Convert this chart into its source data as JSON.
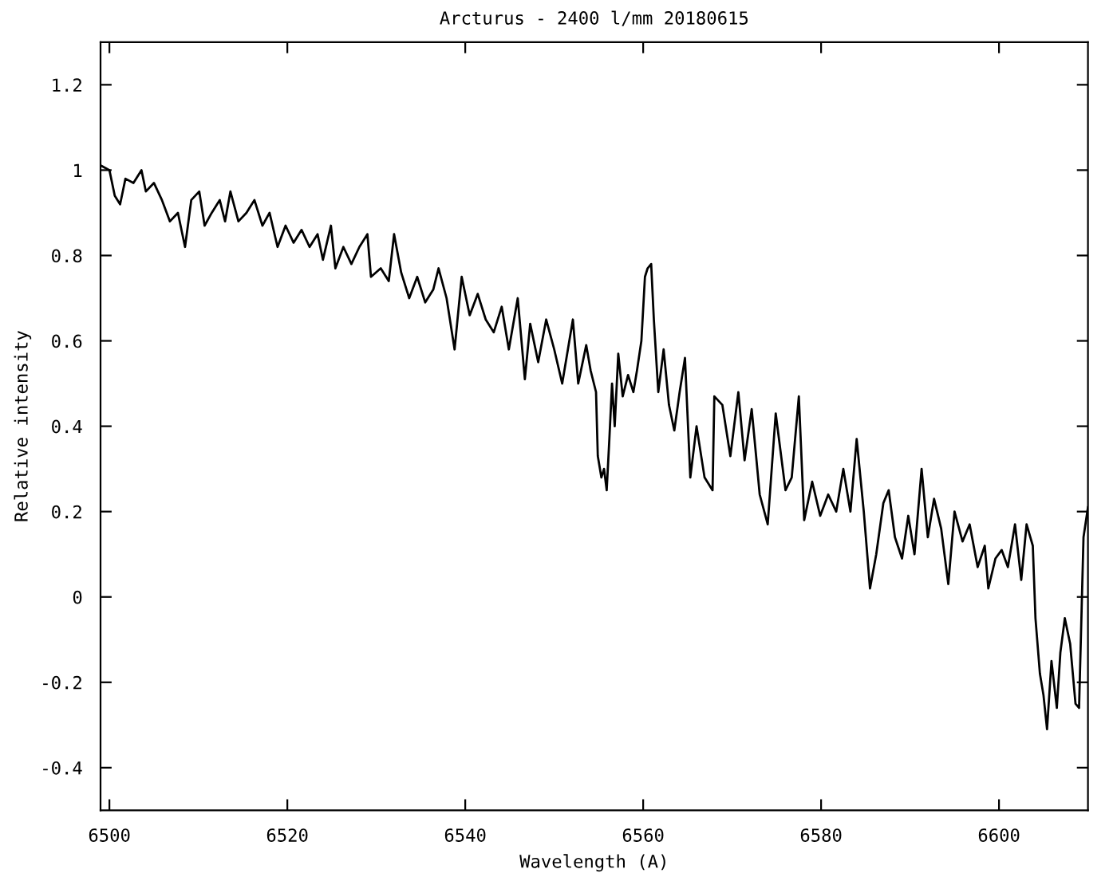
{
  "chart_data": {
    "type": "line",
    "title": "Arcturus - 2400 l/mm 20180615",
    "xlabel": "Wavelength (A)",
    "ylabel": "Relative intensity",
    "xlim": [
      6499,
      6610
    ],
    "xticks": [
      6500,
      6520,
      6540,
      6560,
      6580,
      6600
    ],
    "ylim": [
      -0.5,
      1.3
    ],
    "yticks": [
      {
        "value": -0.4,
        "label": "-0.4"
      },
      {
        "value": -0.2,
        "label": "-0.2"
      },
      0,
      0.2,
      0.4,
      0.6,
      0.8,
      1,
      1.2
    ],
    "grid": false,
    "marker": "none",
    "line_style": "solid",
    "series": [
      {
        "color": "#000000",
        "x": [
          6499.1,
          6500,
          6500.6,
          6501.2,
          6501.8,
          6502.7,
          6503.6,
          6504.1,
          6505.0,
          6505.9,
          6506.8,
          6507.7,
          6508.5,
          6509.2,
          6510.1,
          6510.7,
          6511.5,
          6512.4,
          6513.0,
          6513.6,
          6514.5,
          6515.4,
          6516.3,
          6517.2,
          6518.0,
          6518.9,
          6519.8,
          6520.7,
          6521.6,
          6522.5,
          6523.4,
          6524.0,
          6524.9,
          6525.4,
          6526.3,
          6527.2,
          6528.1,
          6529.0,
          6529.4,
          6530.5,
          6531.4,
          6532.0,
          6532.8,
          6533.7,
          6534.6,
          6535.5,
          6536.4,
          6537.0,
          6537.9,
          6538.8,
          6539.6,
          6540.5,
          6541.4,
          6542.3,
          6543.2,
          6544.1,
          6544.9,
          6545.9,
          6546.7,
          6547.3,
          6548.2,
          6549.1,
          6550.0,
          6550.9,
          6552.1,
          6552.7,
          6553.6,
          6554.1,
          6554.7,
          6554.9,
          6555.3,
          6555.6,
          6555.9,
          6556.2,
          6556.5,
          6556.8,
          6557.2,
          6557.7,
          6558.3,
          6558.9,
          6559.3,
          6559.8,
          6560.2,
          6560.5,
          6560.9,
          6561.2,
          6561.7,
          6562.3,
          6562.9,
          6563.5,
          6564.1,
          6564.7,
          6565.3,
          6566.0,
          6566.9,
          6567.8,
          6568.0,
          6568.9,
          6569.8,
          6570.7,
          6571.4,
          6572.2,
          6573.1,
          6574.0,
          6574.9,
          6576.0,
          6576.7,
          6577.5,
          6578.1,
          6579.0,
          6579.9,
          6580.8,
          6581.7,
          6582.5,
          6583.3,
          6584.0,
          6584.8,
          6585.5,
          6586.2,
          6587.0,
          6587.6,
          6588.3,
          6589.1,
          6589.8,
          6590.5,
          6591.3,
          6592.0,
          6592.7,
          6593.5,
          6594.3,
          6595.0,
          6595.9,
          6596.7,
          6597.6,
          6598.4,
          6598.8,
          6599.6,
          6600.3,
          6601.0,
          6601.8,
          6602.5,
          6603.1,
          6603.8,
          6604.1,
          6604.6,
          6605.0,
          6605.4,
          6605.9,
          6606.5,
          6606.9,
          6607.4,
          6608.0,
          6608.6,
          6609.0,
          6609.5,
          6610.0
        ],
        "values": [
          1.01,
          1.0,
          0.94,
          0.92,
          0.98,
          0.97,
          1.0,
          0.95,
          0.97,
          0.93,
          0.88,
          0.9,
          0.82,
          0.93,
          0.95,
          0.87,
          0.9,
          0.93,
          0.88,
          0.95,
          0.88,
          0.9,
          0.93,
          0.87,
          0.9,
          0.82,
          0.87,
          0.83,
          0.86,
          0.82,
          0.85,
          0.79,
          0.87,
          0.77,
          0.82,
          0.78,
          0.82,
          0.85,
          0.75,
          0.77,
          0.74,
          0.85,
          0.76,
          0.7,
          0.75,
          0.69,
          0.72,
          0.77,
          0.7,
          0.58,
          0.75,
          0.66,
          0.71,
          0.65,
          0.62,
          0.68,
          0.58,
          0.7,
          0.51,
          0.64,
          0.55,
          0.65,
          0.58,
          0.5,
          0.65,
          0.5,
          0.59,
          0.53,
          0.48,
          0.33,
          0.28,
          0.3,
          0.25,
          0.37,
          0.5,
          0.4,
          0.57,
          0.47,
          0.52,
          0.48,
          0.53,
          0.6,
          0.75,
          0.77,
          0.78,
          0.65,
          0.48,
          0.58,
          0.45,
          0.39,
          0.48,
          0.56,
          0.28,
          0.4,
          0.28,
          0.25,
          0.47,
          0.45,
          0.33,
          0.48,
          0.32,
          0.44,
          0.24,
          0.17,
          0.43,
          0.25,
          0.28,
          0.47,
          0.18,
          0.27,
          0.19,
          0.24,
          0.2,
          0.3,
          0.2,
          0.37,
          0.2,
          0.02,
          0.1,
          0.22,
          0.25,
          0.14,
          0.09,
          0.19,
          0.1,
          0.3,
          0.14,
          0.23,
          0.16,
          0.03,
          0.2,
          0.13,
          0.17,
          0.07,
          0.12,
          0.02,
          0.09,
          0.11,
          0.07,
          0.17,
          0.04,
          0.17,
          0.12,
          -0.05,
          -0.18,
          -0.23,
          -0.31,
          -0.15,
          -0.26,
          -0.13,
          -0.05,
          -0.11,
          -0.25,
          -0.26,
          0.14,
          0.21
        ]
      }
    ]
  }
}
